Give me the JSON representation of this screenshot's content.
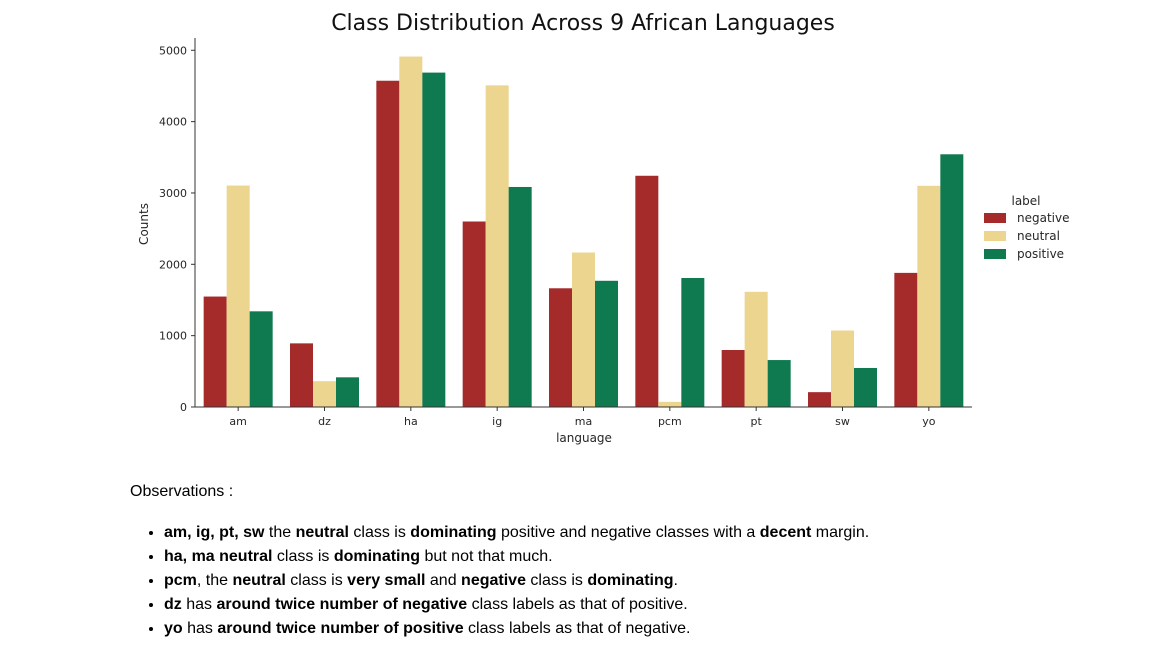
{
  "chart_data": {
    "type": "bar",
    "title": "Class Distribution Across 9 African Languages",
    "xlabel": "language",
    "ylabel": "Counts",
    "ylim": [
      0,
      5200
    ],
    "yticks": [
      0,
      1000,
      2000,
      3000,
      4000,
      5000
    ],
    "categories": [
      "am",
      "dz",
      "ha",
      "ig",
      "ma",
      "pcm",
      "pt",
      "sw",
      "yo"
    ],
    "legend": {
      "title": "label",
      "position": "right"
    },
    "series": [
      {
        "name": "negative",
        "color": "#a52a2a",
        "values": [
          1548,
          892,
          4573,
          2600,
          1664,
          3241,
          799,
          208,
          1880
        ]
      },
      {
        "name": "neutral",
        "color": "#ecd58e",
        "values": [
          3104,
          362,
          4912,
          4508,
          2165,
          72,
          1614,
          1072,
          3100
        ]
      },
      {
        "name": "positive",
        "color": "#0f7a4f",
        "values": [
          1341,
          416,
          4687,
          3084,
          1769,
          1808,
          658,
          547,
          3542
        ]
      }
    ],
    "grid": false
  },
  "observations": {
    "heading": "Observations :",
    "items": [
      [
        {
          "t": "am, ig, pt, sw",
          "b": true
        },
        {
          "t": " the ",
          "b": false
        },
        {
          "t": "neutral",
          "b": true
        },
        {
          "t": " class is ",
          "b": false
        },
        {
          "t": "dominating",
          "b": true
        },
        {
          "t": " positive and negative classes with a ",
          "b": false
        },
        {
          "t": "decent",
          "b": true
        },
        {
          "t": " margin.",
          "b": false
        }
      ],
      [
        {
          "t": "ha, ma neutral",
          "b": true
        },
        {
          "t": " class is ",
          "b": false
        },
        {
          "t": "dominating",
          "b": true
        },
        {
          "t": " but not that much.",
          "b": false
        }
      ],
      [
        {
          "t": "pcm",
          "b": true
        },
        {
          "t": ", the ",
          "b": false
        },
        {
          "t": "neutral",
          "b": true
        },
        {
          "t": " class is ",
          "b": false
        },
        {
          "t": "very small",
          "b": true
        },
        {
          "t": " and ",
          "b": false
        },
        {
          "t": "negative",
          "b": true
        },
        {
          "t": " class is ",
          "b": false
        },
        {
          "t": "dominating",
          "b": true
        },
        {
          "t": ".",
          "b": false
        }
      ],
      [
        {
          "t": "dz",
          "b": true
        },
        {
          "t": " has ",
          "b": false
        },
        {
          "t": "around twice number of negative",
          "b": true
        },
        {
          "t": " class labels as that of positive.",
          "b": false
        }
      ],
      [
        {
          "t": "yo",
          "b": true
        },
        {
          "t": " has ",
          "b": false
        },
        {
          "t": "around twice number of positive",
          "b": true
        },
        {
          "t": " class labels as that of negative.",
          "b": false
        }
      ]
    ]
  }
}
